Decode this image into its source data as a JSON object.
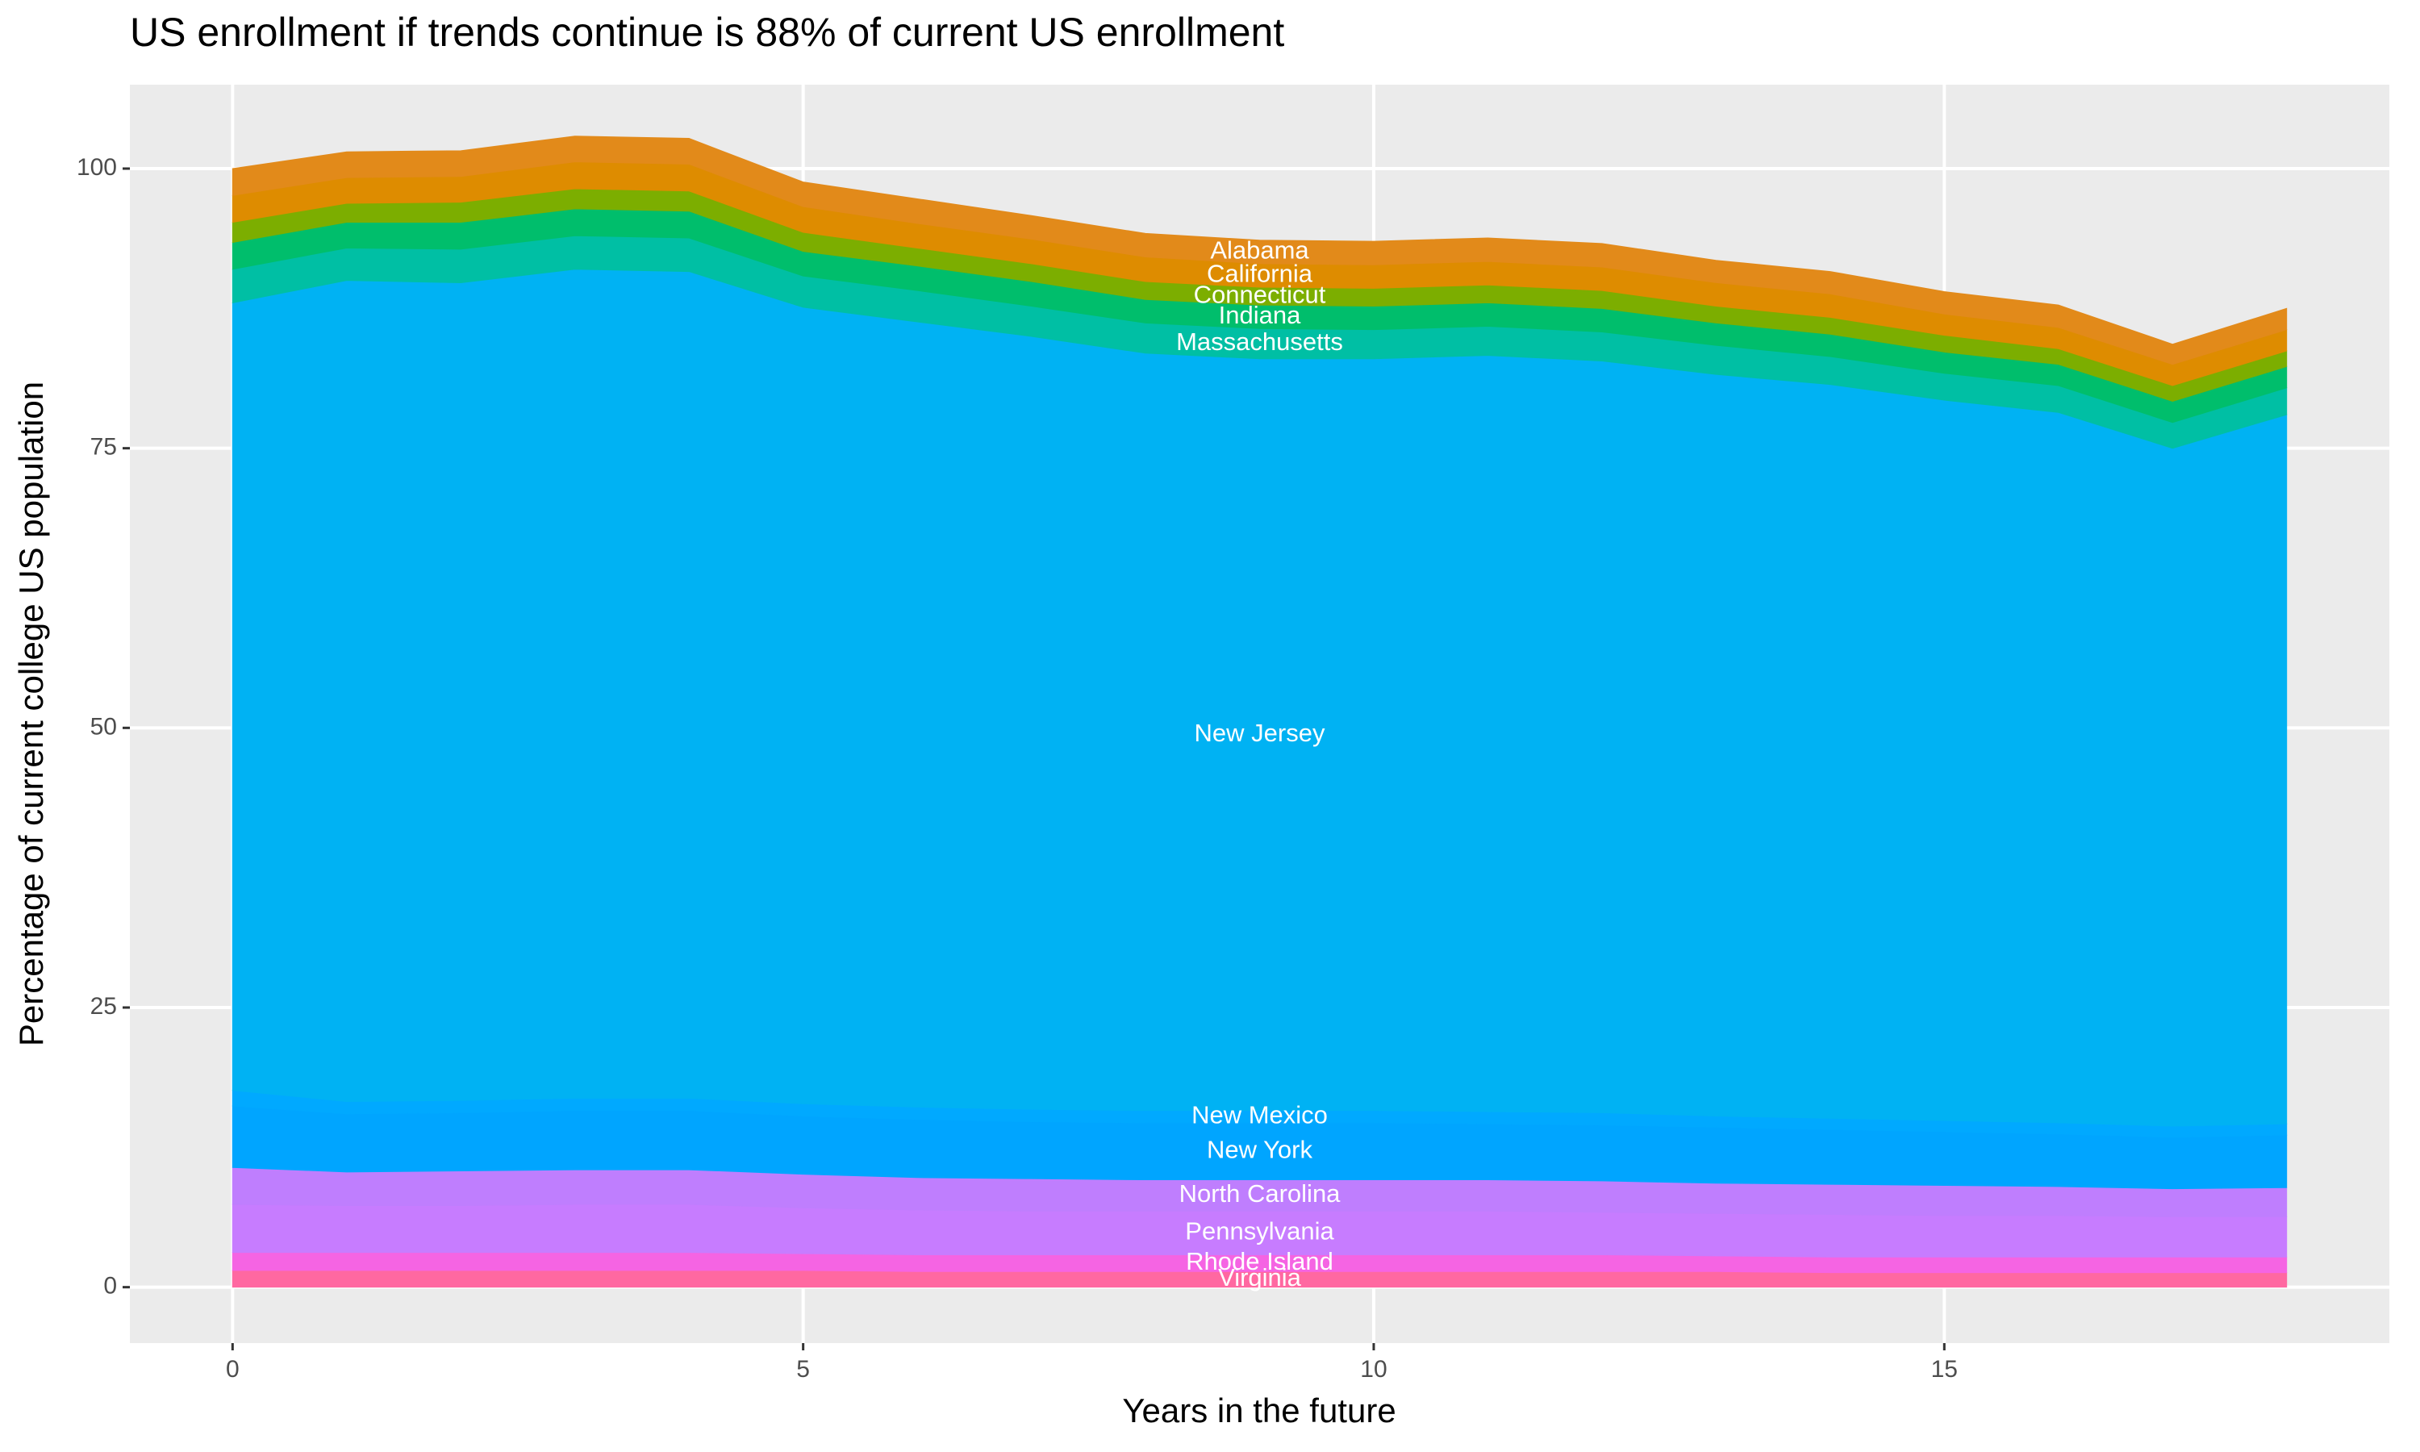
{
  "chart_data": {
    "type": "stacked_area",
    "title": "US enrollment if trends continue is 88% of current US enrollment",
    "x_label": "Years in the future",
    "y_label": "Percentage of current college US population",
    "x": [
      0,
      1,
      2,
      3,
      4,
      5,
      6,
      7,
      8,
      9,
      10,
      11,
      12,
      13,
      14,
      15,
      16,
      17,
      18
    ],
    "xlim": [
      -0.9,
      18.9
    ],
    "xticks": [
      0,
      5,
      10,
      15
    ],
    "ylim": [
      -5,
      107.5
    ],
    "yticks": [
      0,
      25,
      50,
      75,
      100
    ],
    "grid": true,
    "label_x": 9,
    "series": [
      {
        "name": "Virginia",
        "color": "#FF68A1",
        "values": [
          1.5,
          1.5,
          1.5,
          1.5,
          1.5,
          1.5,
          1.4,
          1.4,
          1.4,
          1.4,
          1.4,
          1.4,
          1.4,
          1.4,
          1.3,
          1.3,
          1.3,
          1.3,
          1.3
        ]
      },
      {
        "name": "Rhode Island",
        "color": "#F564E3",
        "values": [
          1.6,
          1.6,
          1.6,
          1.6,
          1.6,
          1.5,
          1.5,
          1.5,
          1.5,
          1.5,
          1.5,
          1.5,
          1.5,
          1.4,
          1.4,
          1.4,
          1.4,
          1.4,
          1.4
        ]
      },
      {
        "name": "Pennsylvania",
        "color": "#C77CFF",
        "values": [
          4.3,
          4.2,
          4.2,
          4.3,
          4.3,
          4.1,
          4.0,
          3.9,
          3.9,
          3.9,
          3.9,
          3.9,
          3.8,
          3.8,
          3.8,
          3.7,
          3.7,
          3.6,
          3.6
        ]
      },
      {
        "name": "North Carolina",
        "color": "#BF7EFE",
        "values": [
          3.3,
          3.0,
          3.1,
          3.1,
          3.1,
          3.0,
          2.9,
          2.9,
          2.8,
          2.8,
          2.8,
          2.8,
          2.8,
          2.7,
          2.7,
          2.7,
          2.6,
          2.5,
          2.6
        ]
      },
      {
        "name": "New York",
        "color": "#00A5FF",
        "values": [
          5.5,
          5.2,
          5.2,
          5.3,
          5.3,
          5.2,
          5.2,
          5.1,
          5.1,
          5.1,
          5.1,
          5.0,
          5.0,
          5.0,
          4.9,
          4.8,
          4.7,
          4.6,
          4.7
        ]
      },
      {
        "name": "New Mexico",
        "color": "#00A9FF",
        "values": [
          1.4,
          1.1,
          1.1,
          1.1,
          1.1,
          1.1,
          1.1,
          1.1,
          1.1,
          1.1,
          1.1,
          1.1,
          1.1,
          1.0,
          1.0,
          1.0,
          1.0,
          1.0,
          1.0
        ]
      },
      {
        "name": "New Jersey",
        "color": "#00B2F3",
        "values": [
          70.4,
          73.4,
          73.1,
          74.1,
          73.9,
          71.2,
          70.2,
          69.1,
          67.7,
          67.2,
          67.2,
          67.6,
          67.2,
          66.3,
          65.6,
          64.4,
          63.5,
          60.6,
          63.4
        ]
      },
      {
        "name": "Massachusetts",
        "color": "#00BFA4",
        "values": [
          3.0,
          2.9,
          3.0,
          3.0,
          3.0,
          2.8,
          2.8,
          2.7,
          2.7,
          2.7,
          2.6,
          2.6,
          2.6,
          2.6,
          2.5,
          2.4,
          2.4,
          2.3,
          2.4
        ]
      },
      {
        "name": "Indiana",
        "color": "#00BE6C",
        "values": [
          2.4,
          2.3,
          2.4,
          2.4,
          2.4,
          2.2,
          2.2,
          2.2,
          2.1,
          2.1,
          2.1,
          2.1,
          2.1,
          2.0,
          2.0,
          1.9,
          1.9,
          1.9,
          1.9
        ]
      },
      {
        "name": "Connecticut",
        "color": "#7CAE00",
        "values": [
          1.8,
          1.7,
          1.8,
          1.8,
          1.8,
          1.7,
          1.6,
          1.6,
          1.6,
          1.6,
          1.6,
          1.6,
          1.6,
          1.5,
          1.5,
          1.5,
          1.4,
          1.4,
          1.4
        ]
      },
      {
        "name": "California",
        "color": "#DE8C00",
        "values": [
          2.4,
          2.3,
          2.3,
          2.4,
          2.4,
          2.3,
          2.2,
          2.2,
          2.2,
          2.1,
          2.1,
          2.1,
          2.1,
          2.1,
          2.1,
          1.9,
          1.9,
          1.9,
          1.9
        ]
      },
      {
        "name": "Alabama",
        "color": "#E28A1A",
        "values": [
          2.4,
          2.3,
          2.3,
          2.3,
          2.3,
          2.2,
          2.2,
          2.1,
          2.1,
          2.1,
          2.1,
          2.1,
          2.1,
          2.0,
          2.0,
          2.0,
          2.0,
          1.8,
          1.9
        ]
      }
    ]
  }
}
